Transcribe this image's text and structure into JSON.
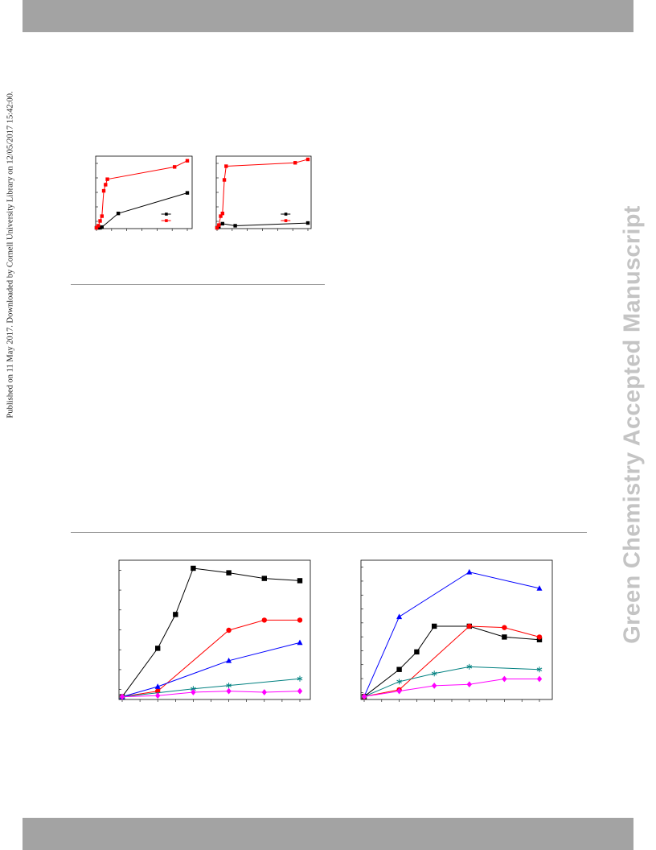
{
  "page": {
    "published_line": "Published on 11 May 2017. Downloaded by Cornell University Library on 12/05/2017 15:42:00.",
    "watermark": "Green Chemistry Accepted Manuscript",
    "colors": {
      "band": "#a3a3a3",
      "rule": "#9a9a9a",
      "watermark": "#c4c4c4"
    }
  },
  "chart_data": [
    {
      "type": "line",
      "title": "",
      "xlim": [
        0,
        100
      ],
      "ylim": [
        0,
        100
      ],
      "legend": "bottom-right",
      "grid": false,
      "series": [
        {
          "color": "#000000",
          "marker": "square",
          "x": [
            0,
            2,
            4,
            6,
            24,
            100
          ],
          "y": [
            0,
            0,
            0,
            1,
            21,
            51
          ]
        },
        {
          "color": "#ff0000",
          "marker": "square",
          "x": [
            0,
            2,
            4,
            6,
            8,
            10,
            12,
            86,
            100
          ],
          "y": [
            0,
            3,
            10,
            17,
            54,
            63,
            71,
            89,
            98
          ]
        }
      ]
    },
    {
      "type": "line",
      "title": "",
      "xlim": [
        0,
        100
      ],
      "ylim": [
        0,
        100
      ],
      "legend": "bottom-right",
      "grid": false,
      "series": [
        {
          "color": "#000000",
          "marker": "square",
          "x": [
            0,
            2,
            6,
            20,
            100
          ],
          "y": [
            0,
            2,
            6,
            3,
            7
          ]
        },
        {
          "color": "#ff0000",
          "marker": "square",
          "x": [
            0,
            2,
            4,
            6,
            8,
            10,
            86,
            100
          ],
          "y": [
            0,
            4,
            17,
            21,
            70,
            90,
            95,
            100
          ]
        }
      ]
    },
    {
      "type": "line",
      "title": "",
      "xlim": [
        0,
        10
      ],
      "ylim": [
        0,
        60
      ],
      "grid": false,
      "series": [
        {
          "color": "#000000",
          "marker": "square",
          "x": [
            0,
            2,
            3,
            4,
            6,
            8,
            10
          ],
          "y": [
            0.5,
            22,
            37,
            57.5,
            55.5,
            53,
            52
          ]
        },
        {
          "color": "#ff0000",
          "marker": "circle",
          "x": [
            0,
            2,
            6,
            8,
            10
          ],
          "y": [
            0.5,
            3,
            30,
            34.5,
            34.5
          ]
        },
        {
          "color": "#0000ff",
          "marker": "triangle",
          "x": [
            0,
            2,
            6,
            10
          ],
          "y": [
            0.5,
            5,
            16.5,
            24.5
          ]
        },
        {
          "color": "#008080",
          "marker": "asterisk",
          "x": [
            0,
            4,
            6,
            10
          ],
          "y": [
            0.5,
            4,
            5.5,
            8.5
          ]
        },
        {
          "color": "#ff00ff",
          "marker": "diamond",
          "x": [
            0,
            2,
            4,
            6,
            8,
            10
          ],
          "y": [
            0.5,
            1,
            2.5,
            3,
            2.5,
            3
          ]
        }
      ]
    },
    {
      "type": "line",
      "title": "",
      "xlim": [
        0,
        10
      ],
      "ylim": [
        0,
        50
      ],
      "grid": false,
      "series": [
        {
          "color": "#0000ff",
          "marker": "triangle",
          "x": [
            0,
            2,
            6,
            10
          ],
          "y": [
            0.5,
            30,
            46.5,
            40.5
          ]
        },
        {
          "color": "#000000",
          "marker": "square",
          "x": [
            0,
            2,
            3,
            4,
            6,
            8,
            10
          ],
          "y": [
            0.5,
            10.5,
            17,
            26.5,
            26.5,
            22.5,
            21.5
          ]
        },
        {
          "color": "#ff0000",
          "marker": "circle",
          "x": [
            0,
            2,
            6,
            8,
            10
          ],
          "y": [
            0.5,
            3,
            26.5,
            26,
            22.5
          ]
        },
        {
          "color": "#008080",
          "marker": "asterisk",
          "x": [
            0,
            2,
            4,
            6,
            10
          ],
          "y": [
            0.5,
            6,
            9,
            11.5,
            10.5
          ]
        },
        {
          "color": "#ff00ff",
          "marker": "diamond",
          "x": [
            0,
            2,
            4,
            6,
            8,
            10
          ],
          "y": [
            0.5,
            2.5,
            4.5,
            5,
            7,
            7
          ]
        }
      ]
    }
  ]
}
